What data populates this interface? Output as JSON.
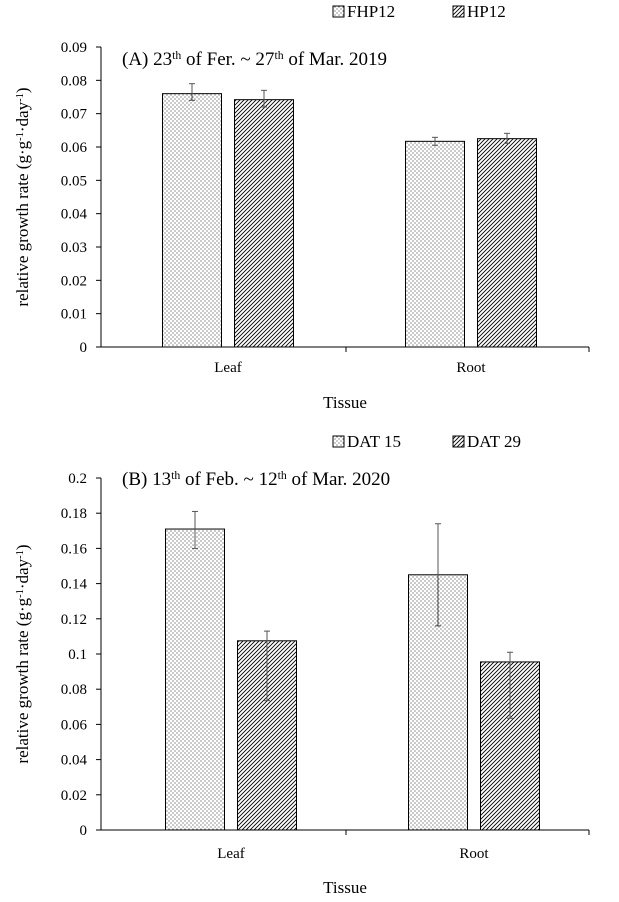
{
  "chart_data": [
    {
      "type": "bar",
      "title_main": "(A) 23",
      "title_sup1": "th",
      "title_mid": " of Fer. ~ 27",
      "title_sup2": "th",
      "title_end": " of Mar. 2019",
      "categories": [
        "Leaf",
        "Root"
      ],
      "series": [
        {
          "name": "FHP12",
          "pattern": "dots",
          "values": [
            0.076,
            0.0617
          ],
          "error_low": [
            0.002,
            0.0012
          ],
          "error_high": [
            0.003,
            0.0012
          ]
        },
        {
          "name": "HP12",
          "pattern": "hatch",
          "values": [
            0.0742,
            0.0625
          ],
          "error_low": [
            0.0022,
            0.0014
          ],
          "error_high": [
            0.0028,
            0.0016
          ]
        }
      ],
      "xlabel": "Tissue",
      "ylabel_pre": "relative growth rate (g·g",
      "ylabel_sup1": "-1",
      "ylabel_mid": "·day",
      "ylabel_sup2": "-1",
      "ylabel_post": ")",
      "ylim": [
        0,
        0.09
      ],
      "yticks": [
        "0",
        "0.01",
        "0.02",
        "0.03",
        "0.04",
        "0.05",
        "0.06",
        "0.07",
        "0.08",
        "0.09"
      ],
      "grid": false,
      "legend_position": "top-right"
    },
    {
      "type": "bar",
      "title_main": "(B) 13",
      "title_sup1": "th",
      "title_mid": " of Feb. ~ 12",
      "title_sup2": "th",
      "title_end": " of Mar. 2020",
      "categories": [
        "Leaf",
        "Root"
      ],
      "series": [
        {
          "name": "DAT 15",
          "pattern": "dots",
          "values": [
            0.171,
            0.145
          ],
          "error_low": [
            0.011,
            0.029
          ],
          "error_high": [
            0.01,
            0.029
          ]
        },
        {
          "name": "DAT 29",
          "pattern": "hatch",
          "values": [
            0.1075,
            0.0955
          ],
          "error_low": [
            0.034,
            0.032
          ],
          "error_high": [
            0.0055,
            0.0055
          ]
        }
      ],
      "xlabel": "Tissue",
      "ylabel_pre": "relative growth rate (g·g",
      "ylabel_sup1": "-1",
      "ylabel_mid": "·day",
      "ylabel_sup2": "-1",
      "ylabel_post": ")",
      "ylim": [
        0,
        0.2
      ],
      "yticks": [
        "0",
        "0.02",
        "0.04",
        "0.06",
        "0.08",
        "0.1",
        "0.12",
        "0.14",
        "0.16",
        "0.18",
        "0.2"
      ],
      "grid": false,
      "legend_position": "top-right"
    }
  ]
}
